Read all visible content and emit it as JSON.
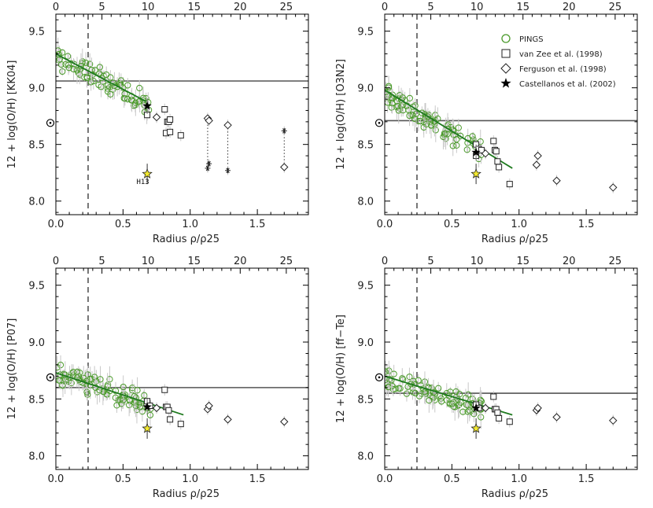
{
  "colors": {
    "pings": "#4a9a2a",
    "fit": "#1e7a1e",
    "errorbar": "#c8c8c8",
    "reference": "#555555",
    "castellanos": "#000000",
    "star_yellow": "#f2e830",
    "frame": "#000000"
  },
  "legend": {
    "items": [
      {
        "label": "PINGS",
        "marker": "circle-open-green"
      },
      {
        "label": "van Zee et al. (1998)",
        "marker": "square-open"
      },
      {
        "label": "Ferguson et al. (1998)",
        "marker": "diamond-open"
      },
      {
        "label": "Castellanos et al. (2002)",
        "marker": "star-filled"
      }
    ]
  },
  "chart_data": [
    {
      "type": "scatter",
      "ylabel": "12 + log(O/H) [KK04]",
      "xlabel": "Radius  ρ/ρ25",
      "xlim": [
        0,
        1.88
      ],
      "ylim": [
        7.88,
        9.65
      ],
      "xticks": [
        0.0,
        0.5,
        1.0,
        1.5
      ],
      "yticks": [
        8.0,
        8.5,
        9.0,
        9.5
      ],
      "top_xticks": [
        0,
        5,
        10,
        15,
        20,
        25
      ],
      "solar_y": 8.69,
      "hline_y": 9.06,
      "vline_x": 0.24,
      "fit": {
        "x0": 0.0,
        "y0": 9.3,
        "x1": 0.67,
        "y1": 8.88
      },
      "pings_trend": {
        "intercept": 9.28,
        "slope": -0.62,
        "n": 80,
        "xmin": 0.0,
        "xmax": 0.7,
        "seed": 11
      },
      "van_zee": [
        [
          0.81,
          8.81
        ],
        [
          0.83,
          8.7
        ],
        [
          0.84,
          8.7
        ],
        [
          0.85,
          8.72
        ],
        [
          0.82,
          8.6
        ],
        [
          0.85,
          8.61
        ],
        [
          0.93,
          8.58
        ],
        [
          0.68,
          8.76
        ]
      ],
      "ferguson": [
        [
          0.75,
          8.74
        ],
        [
          1.13,
          8.73
        ],
        [
          1.14,
          8.71
        ],
        [
          1.28,
          8.67
        ],
        [
          1.7,
          8.3
        ]
      ],
      "asterisks": [
        [
          1.13,
          8.29
        ],
        [
          1.14,
          8.33
        ],
        [
          1.28,
          8.27
        ],
        [
          1.7,
          8.62
        ]
      ],
      "dotted_links": [
        [
          1.13,
          8.73,
          8.29
        ],
        [
          1.28,
          8.67,
          8.27
        ],
        [
          1.7,
          8.62,
          8.3
        ]
      ],
      "castellanos": [
        0.68,
        8.84
      ],
      "yellow_star": [
        0.68,
        8.24
      ],
      "annotation": {
        "text": "H13",
        "x": 0.6,
        "y": 8.17
      }
    },
    {
      "type": "scatter",
      "ylabel": "12 + log(O/H) [O3N2]",
      "xlabel": "Radius  ρ/ρ25",
      "xlim": [
        0,
        1.88
      ],
      "ylim": [
        7.88,
        9.65
      ],
      "xticks": [
        0.0,
        0.5,
        1.0,
        1.5
      ],
      "yticks": [
        8.0,
        8.5,
        9.0,
        9.5
      ],
      "top_xticks": [
        0,
        5,
        10,
        15,
        20,
        25
      ],
      "solar_y": 8.69,
      "hline_y": 8.71,
      "vline_x": 0.24,
      "fit": {
        "x0": 0.0,
        "y0": 8.98,
        "x1": 0.95,
        "y1": 8.29
      },
      "pings_trend": {
        "intercept": 8.95,
        "slope": -0.72,
        "n": 90,
        "xmin": 0.0,
        "xmax": 0.72,
        "seed": 23
      },
      "van_zee": [
        [
          0.81,
          8.53
        ],
        [
          0.82,
          8.45
        ],
        [
          0.83,
          8.44
        ],
        [
          0.84,
          8.35
        ],
        [
          0.85,
          8.3
        ],
        [
          0.93,
          8.15
        ],
        [
          0.68,
          8.5
        ],
        [
          0.7,
          8.46
        ],
        [
          0.72,
          8.45
        ],
        [
          0.68,
          8.4
        ]
      ],
      "ferguson": [
        [
          0.75,
          8.42
        ],
        [
          1.13,
          8.32
        ],
        [
          1.14,
          8.4
        ],
        [
          1.28,
          8.18
        ],
        [
          1.7,
          8.12
        ]
      ],
      "asterisks": [],
      "dotted_links": [],
      "castellanos": [
        0.68,
        8.43
      ],
      "yellow_star": [
        0.68,
        8.24
      ]
    },
    {
      "type": "scatter",
      "ylabel": "12 + log(O/H) [P07]",
      "xlabel": "Radius  ρ/ρ25",
      "xlim": [
        0,
        1.88
      ],
      "ylim": [
        7.88,
        9.65
      ],
      "xticks": [
        0.0,
        0.5,
        1.0,
        1.5
      ],
      "yticks": [
        8.0,
        8.5,
        9.0,
        9.5
      ],
      "top_xticks": [
        0,
        5,
        10,
        15,
        20,
        25
      ],
      "solar_y": 8.69,
      "hline_y": 8.6,
      "vline_x": 0.24,
      "fit": {
        "x0": 0.0,
        "y0": 8.73,
        "x1": 0.95,
        "y1": 8.36
      },
      "pings_trend": {
        "intercept": 8.72,
        "slope": -0.38,
        "n": 90,
        "xmin": 0.0,
        "xmax": 0.72,
        "seed": 37
      },
      "van_zee": [
        [
          0.81,
          8.58
        ],
        [
          0.82,
          8.43
        ],
        [
          0.83,
          8.43
        ],
        [
          0.84,
          8.4
        ],
        [
          0.85,
          8.32
        ],
        [
          0.93,
          8.28
        ],
        [
          0.68,
          8.48
        ],
        [
          0.7,
          8.44
        ]
      ],
      "ferguson": [
        [
          0.75,
          8.42
        ],
        [
          1.13,
          8.41
        ],
        [
          1.14,
          8.44
        ],
        [
          1.28,
          8.32
        ],
        [
          1.7,
          8.3
        ]
      ],
      "asterisks": [],
      "dotted_links": [],
      "castellanos": [
        0.68,
        8.43
      ],
      "yellow_star": [
        0.68,
        8.24
      ]
    },
    {
      "type": "scatter",
      "ylabel": "12 + log(O/H) [ff−Te]",
      "xlabel": "Radius  ρ/ρ25",
      "xlim": [
        0,
        1.88
      ],
      "ylim": [
        7.88,
        9.65
      ],
      "xticks": [
        0.0,
        0.5,
        1.0,
        1.5
      ],
      "yticks": [
        8.0,
        8.5,
        9.0,
        9.5
      ],
      "top_xticks": [
        0,
        5,
        10,
        15,
        20,
        25
      ],
      "solar_y": 8.69,
      "hline_y": 8.55,
      "vline_x": 0.24,
      "fit": {
        "x0": 0.0,
        "y0": 8.7,
        "x1": 0.95,
        "y1": 8.36
      },
      "pings_trend": {
        "intercept": 8.68,
        "slope": -0.35,
        "n": 90,
        "xmin": 0.0,
        "xmax": 0.72,
        "seed": 51
      },
      "van_zee": [
        [
          0.81,
          8.52
        ],
        [
          0.82,
          8.41
        ],
        [
          0.83,
          8.41
        ],
        [
          0.84,
          8.38
        ],
        [
          0.85,
          8.33
        ],
        [
          0.93,
          8.3
        ],
        [
          0.68,
          8.45
        ],
        [
          0.7,
          8.42
        ]
      ],
      "ferguson": [
        [
          0.75,
          8.42
        ],
        [
          1.13,
          8.4
        ],
        [
          1.14,
          8.42
        ],
        [
          1.28,
          8.34
        ],
        [
          1.7,
          8.31
        ]
      ],
      "asterisks": [],
      "dotted_links": [],
      "castellanos": [
        0.68,
        8.42
      ],
      "yellow_star": [
        0.68,
        8.24
      ]
    }
  ]
}
